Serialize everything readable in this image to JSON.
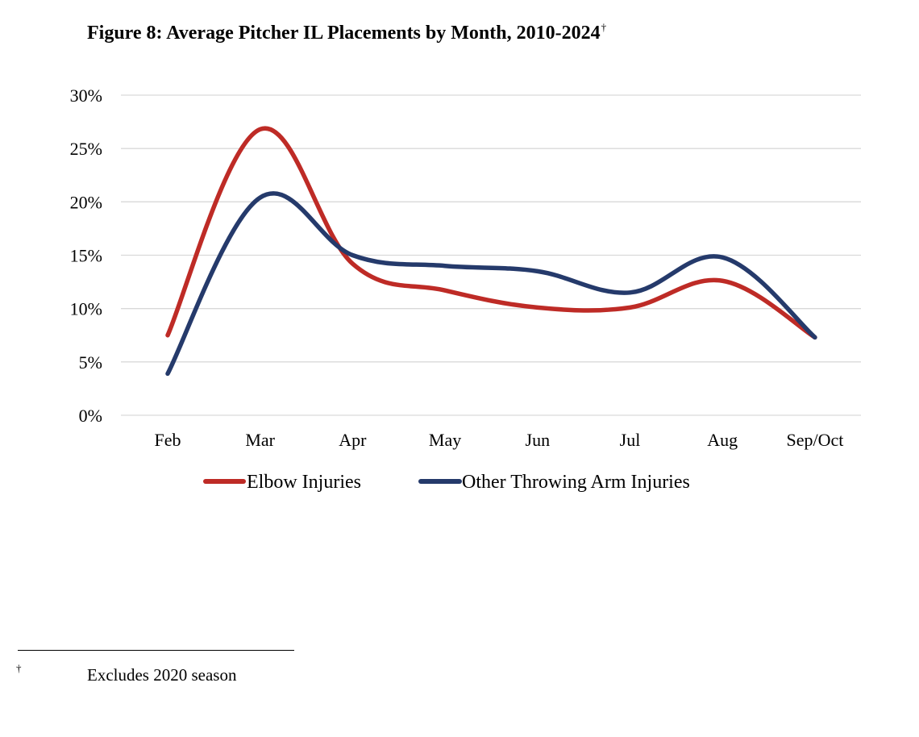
{
  "header": {
    "title": "Figure 8: Average Pitcher IL Placements by Month, 2010-2024",
    "title_mark": "†"
  },
  "chart_data": {
    "type": "line",
    "title": "Figure 8: Average Pitcher IL Placements by Month, 2010-2024",
    "xlabel": "",
    "ylabel": "",
    "categories": [
      "Feb",
      "Mar",
      "Apr",
      "May",
      "Jun",
      "Jul",
      "Aug",
      "Sep/Oct"
    ],
    "y_ticks": [
      "0%",
      "5%",
      "10%",
      "15%",
      "20%",
      "25%",
      "30%"
    ],
    "ylim": [
      0,
      30
    ],
    "grid": true,
    "legend_position": "bottom",
    "smooth": true,
    "series": [
      {
        "name": "Elbow Injuries",
        "color": "#BE2B26",
        "values": [
          7.5,
          26.8,
          14.2,
          11.7,
          10.1,
          10.1,
          12.6,
          7.3
        ]
      },
      {
        "name": "Other Throwing Arm Injuries",
        "color": "#253A6B",
        "values": [
          3.9,
          20.4,
          15.0,
          14.0,
          13.5,
          11.5,
          14.8,
          7.3
        ]
      }
    ]
  },
  "footnote": {
    "mark": "†",
    "text": "Excludes 2020 season"
  }
}
